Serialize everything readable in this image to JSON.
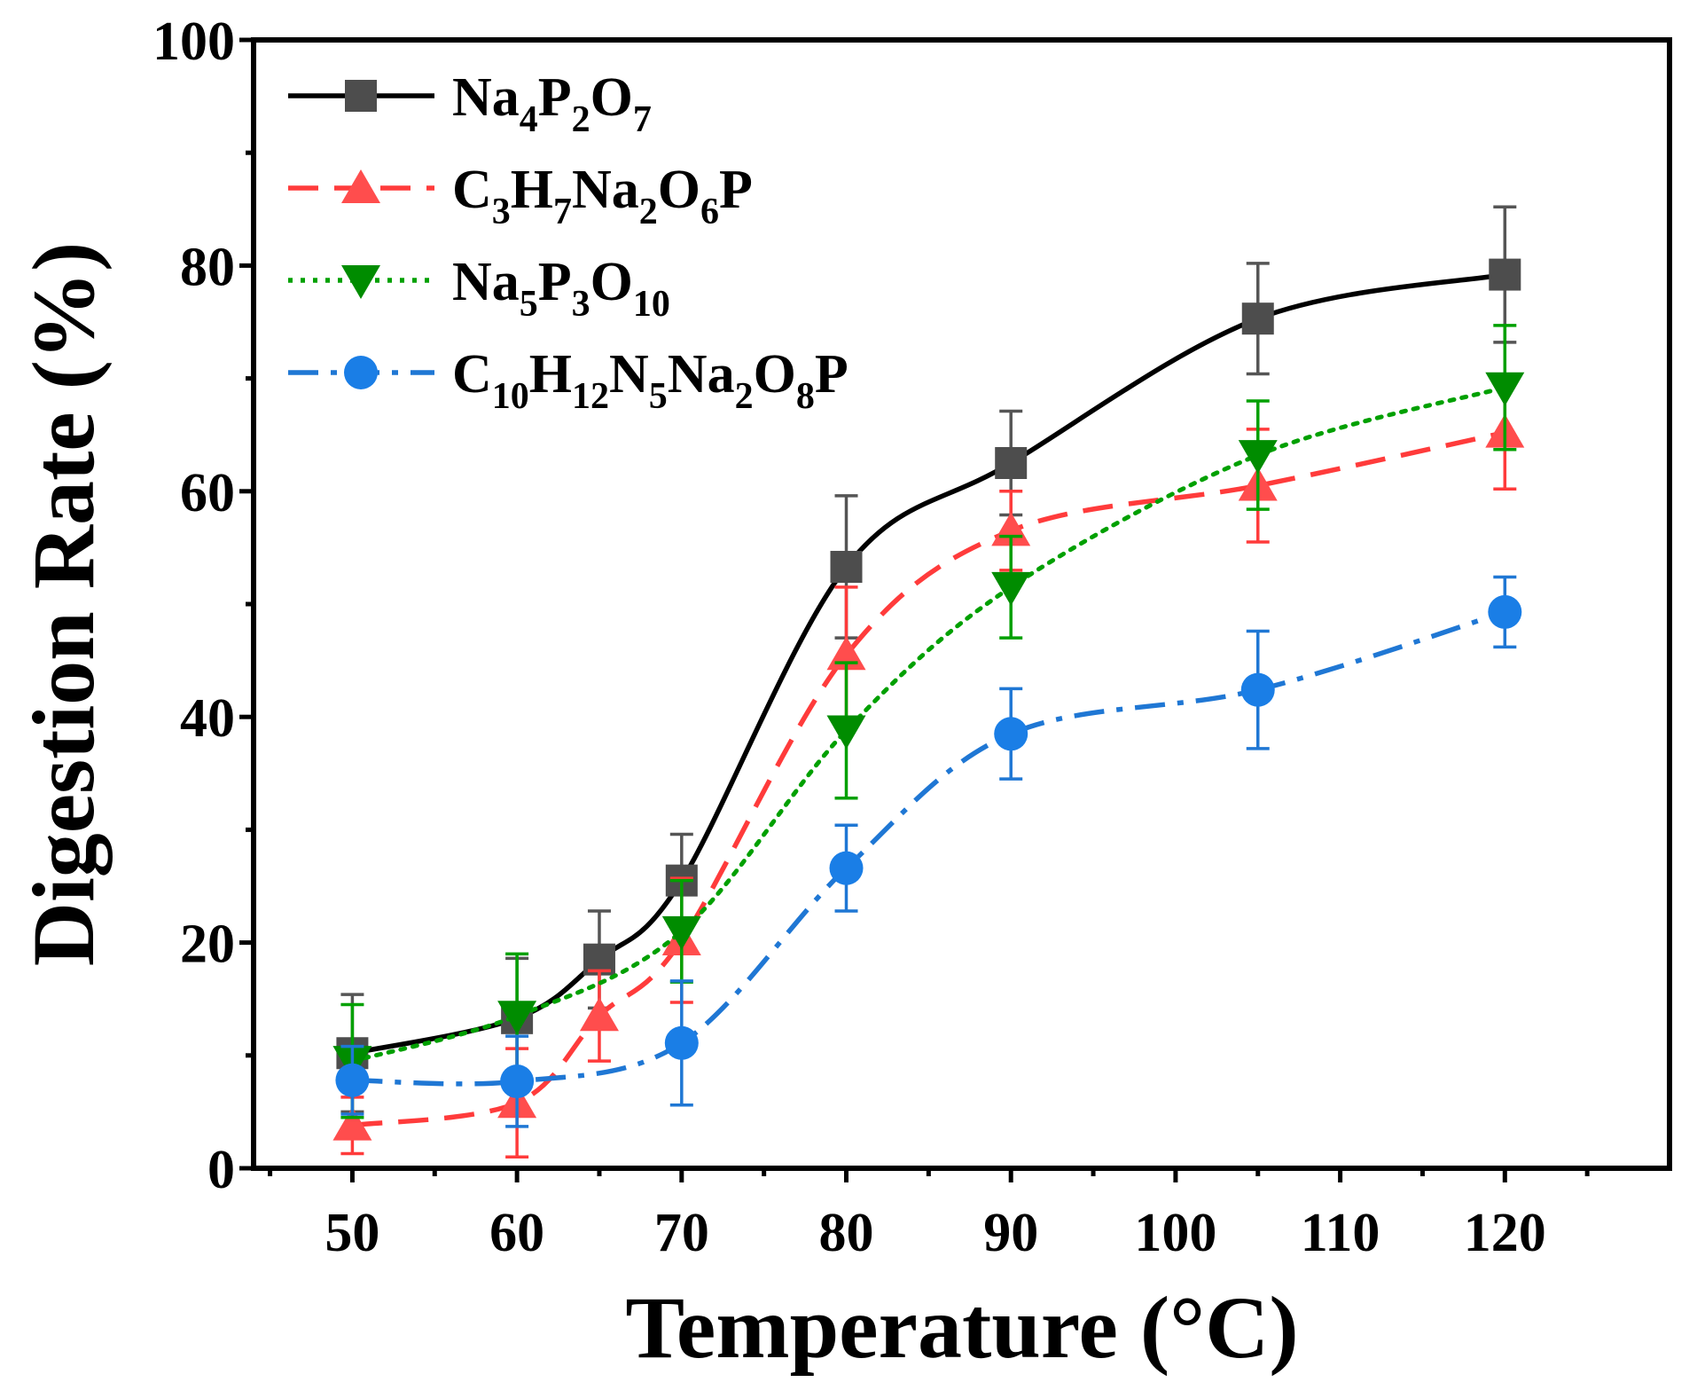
{
  "chart_data": {
    "type": "line",
    "title": "",
    "xlabel": "Temperature (°C)",
    "ylabel": "Digestion Rate (%)",
    "xlim": [
      44,
      130
    ],
    "ylim": [
      0,
      100
    ],
    "xticks": [
      50,
      60,
      70,
      80,
      90,
      100,
      110,
      120
    ],
    "yticks": [
      0,
      20,
      40,
      60,
      80,
      100
    ],
    "grid": false,
    "legend_position": "top-left",
    "series": [
      {
        "name": "Na4P2O7",
        "legend_parts": [
          [
            "Na",
            ""
          ],
          [
            "4",
            "sub"
          ],
          [
            "P",
            ""
          ],
          [
            "2",
            "sub"
          ],
          [
            "O",
            ""
          ],
          [
            "7",
            "sub"
          ]
        ],
        "color": "#000000",
        "marker_color": "#4d4d4d",
        "marker": "square",
        "dash": "solid",
        "x": [
          50,
          60,
          65,
          70,
          80,
          90,
          105,
          120
        ],
        "y": [
          10.2,
          13.3,
          18.5,
          25.5,
          53.3,
          62.5,
          75.3,
          79.2
        ],
        "err": [
          5.2,
          5.3,
          4.3,
          4.1,
          6.3,
          4.6,
          4.9,
          6.0
        ]
      },
      {
        "name": "C3H7Na2O6P",
        "legend_parts": [
          [
            "C",
            ""
          ],
          [
            "3",
            "sub"
          ],
          [
            "H",
            ""
          ],
          [
            "7",
            "sub"
          ],
          [
            "Na",
            ""
          ],
          [
            "2",
            "sub"
          ],
          [
            "O",
            ""
          ],
          [
            "6",
            "sub"
          ],
          [
            "P",
            ""
          ]
        ],
        "color": "#ff3b3b",
        "marker_color": "#ff4d4d",
        "marker": "triangle-up",
        "dash": "dash",
        "x": [
          50,
          60,
          65,
          70,
          80,
          90,
          105,
          120
        ],
        "y": [
          3.8,
          5.8,
          13.5,
          20.2,
          45.5,
          56.5,
          60.5,
          65.2
        ],
        "err": [
          2.5,
          4.8,
          4.0,
          5.5,
          6.0,
          3.5,
          5.0,
          5.0
        ]
      },
      {
        "name": "Na5P3O10",
        "legend_parts": [
          [
            "Na",
            ""
          ],
          [
            "5",
            "sub"
          ],
          [
            "P",
            ""
          ],
          [
            "3",
            "sub"
          ],
          [
            "O",
            ""
          ],
          [
            "10",
            "sub"
          ]
        ],
        "color": "#00a000",
        "marker_color": "#008c00",
        "marker": "triangle-down",
        "dash": "dot",
        "x": [
          50,
          60,
          70,
          80,
          90,
          105,
          120
        ],
        "y": [
          9.5,
          13.5,
          21.0,
          38.8,
          51.5,
          63.2,
          69.2
        ],
        "err": [
          5.0,
          5.5,
          4.5,
          6.0,
          4.5,
          4.8,
          5.5
        ]
      },
      {
        "name": "C10H12N5Na2O8P",
        "legend_parts": [
          [
            "C",
            ""
          ],
          [
            "10",
            "sub"
          ],
          [
            "H",
            ""
          ],
          [
            "12",
            "sub"
          ],
          [
            "N",
            ""
          ],
          [
            "5",
            "sub"
          ],
          [
            "Na",
            ""
          ],
          [
            "2",
            "sub"
          ],
          [
            "O",
            ""
          ],
          [
            "8",
            "sub"
          ],
          [
            "P",
            ""
          ]
        ],
        "color": "#1f77d4",
        "marker_color": "#1a7ee6",
        "marker": "circle",
        "dash": "dashdot",
        "x": [
          50,
          60,
          70,
          80,
          90,
          105,
          120
        ],
        "y": [
          7.8,
          7.7,
          11.1,
          26.6,
          38.5,
          42.4,
          49.3
        ],
        "err": [
          3.0,
          4.0,
          5.5,
          3.8,
          4.0,
          5.2,
          3.1
        ]
      }
    ]
  }
}
